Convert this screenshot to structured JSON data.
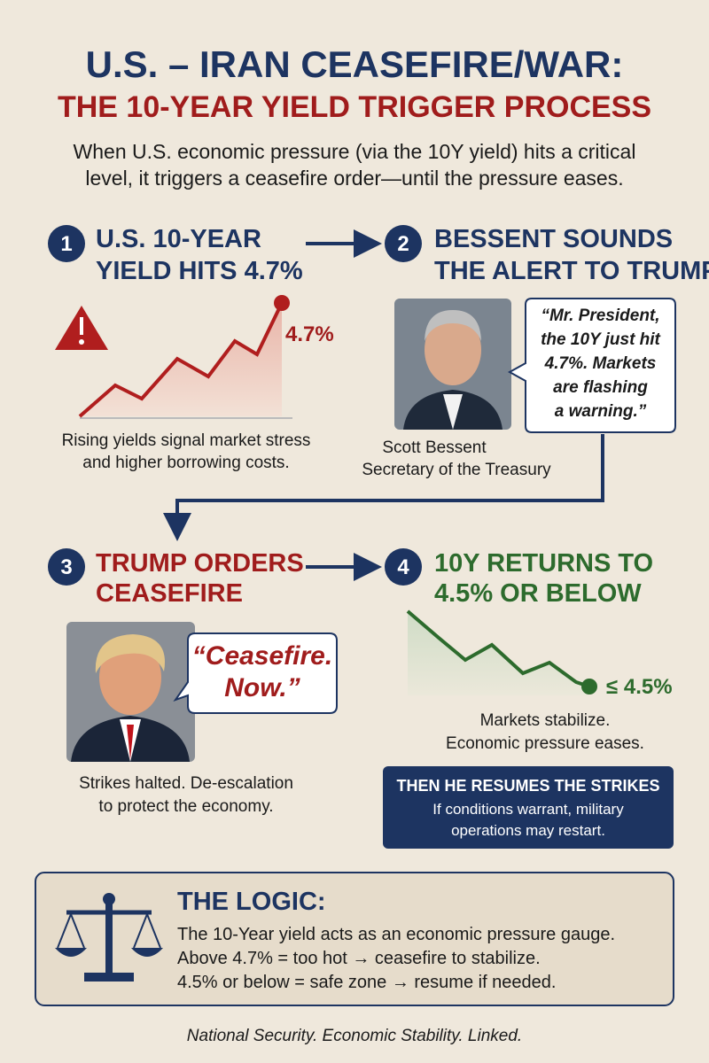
{
  "header": {
    "title": "U.S. – IRAN CEASEFIRE/WAR:",
    "subtitle": "THE 10-YEAR YIELD TRIGGER PROCESS",
    "intro": [
      "When U.S. economic pressure (via the 10Y yield) hits a critical",
      "level, it triggers a ceasefire order—until the pressure eases."
    ]
  },
  "steps": [
    {
      "number": "1",
      "title": [
        "U.S. 10-YEAR",
        "YIELD HITS 4.7%"
      ],
      "chart_label": "4.7%",
      "caption": [
        "Rising yields signal market stress",
        "and higher borrowing costs."
      ]
    },
    {
      "number": "2",
      "title": [
        "BESSENT SOUNDS",
        "THE ALERT TO TRUMP"
      ],
      "quote": [
        "“Mr. President,",
        "the 10Y just hit",
        "4.7%. Markets",
        "are flashing",
        "a warning.”"
      ],
      "person": "Scott Bessent",
      "role": "Secretary of the Treasury"
    },
    {
      "number": "3",
      "title": [
        "TRUMP ORDERS",
        "CEASEFIRE"
      ],
      "quote": [
        "“Ceasefire.",
        "Now.”"
      ],
      "caption": [
        "Strikes halted. De-escalation",
        "to protect the economy."
      ]
    },
    {
      "number": "4",
      "title": [
        "10Y RETURNS TO",
        "4.5% OR BELOW"
      ],
      "chart_label": "≤ 4.5%",
      "caption": [
        "Markets stabilize.",
        "Economic pressure eases."
      ],
      "callout_title": "THEN HE RESUMES THE STRIKES",
      "callout": [
        "If conditions warrant, military",
        "operations may restart."
      ]
    }
  ],
  "logic": {
    "title": "THE LOGIC:",
    "lines": [
      "The 10-Year yield acts as an economic pressure gauge.",
      "Above 4.7% = too hot → ceasefire to stabilize.",
      "4.5% or below = safe zone → resume if needed."
    ]
  },
  "footer": "National Security. Economic Stability. Linked."
}
